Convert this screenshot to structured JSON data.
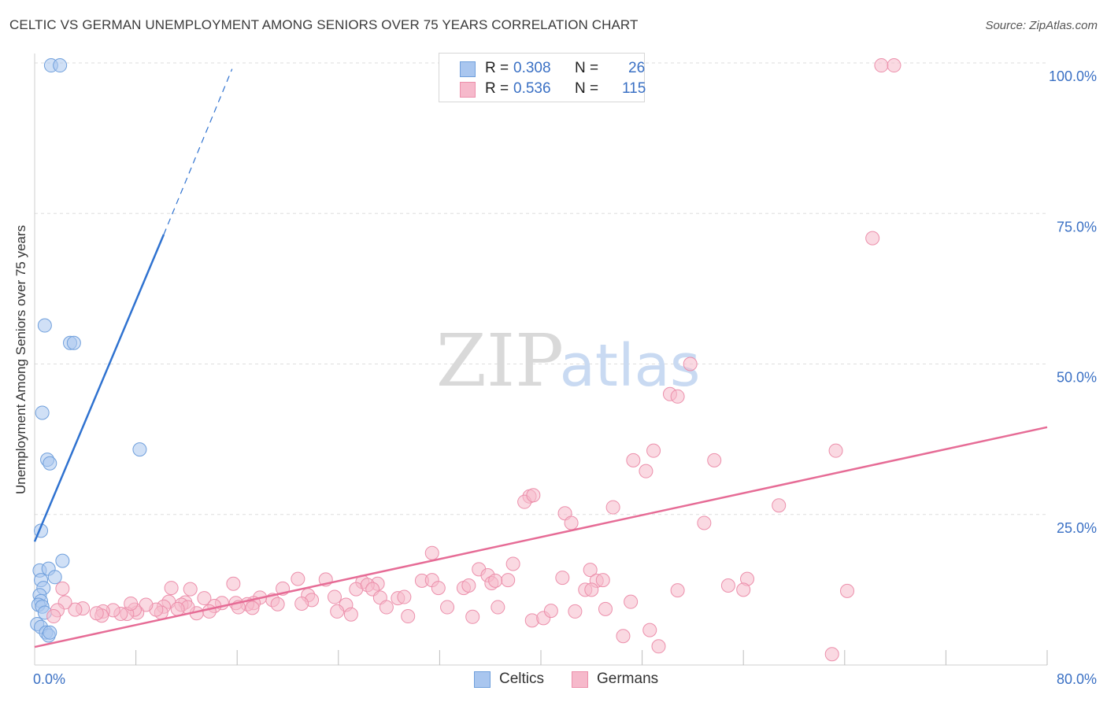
{
  "title": "CELTIC VS GERMAN UNEMPLOYMENT AMONG SENIORS OVER 75 YEARS CORRELATION CHART",
  "source": "Source: ZipAtlas.com",
  "watermark": {
    "zip": "ZIP",
    "atlas": "atlas"
  },
  "legend": {
    "rows": [
      {
        "r_label": "R =",
        "r_value": "0.308",
        "n_label": "N =",
        "n_value": "26",
        "color": "#a9c6ef"
      },
      {
        "r_label": "R =",
        "r_value": "0.536",
        "n_label": "N =",
        "n_value": "115",
        "color": "#f6b9cb"
      }
    ]
  },
  "bottom_legend": [
    {
      "label": "Celtics",
      "color": "#a9c6ef"
    },
    {
      "label": "Germans",
      "color": "#f6b9cb"
    }
  ],
  "chart_data": {
    "type": "scatter",
    "title": "CELTIC VS GERMAN UNEMPLOYMENT AMONG SENIORS OVER 75 YEARS CORRELATION CHART",
    "xlabel": "",
    "ylabel": "Unemployment Among Seniors over 75 years",
    "xlim": [
      0,
      80
    ],
    "ylim": [
      0,
      100
    ],
    "x_tick_labels": [
      "0.0%",
      "80.0%"
    ],
    "y_tick_labels": [
      {
        "value": 100,
        "label": "100.0%"
      },
      {
        "value": 75,
        "label": "75.0%"
      },
      {
        "value": 50,
        "label": "50.0%"
      },
      {
        "value": 25,
        "label": "25.0%"
      }
    ],
    "grid": true,
    "series": [
      {
        "name": "Celtics",
        "color": "#a9c6ef",
        "stroke": "#6f9fdc",
        "line_color": "#2f72d0",
        "trend": {
          "x0": 0.0,
          "y0": 20.5,
          "x1": 10.2,
          "y1": 71.5,
          "dash_to_x": 15.6,
          "dash_to_y": 99.0
        },
        "points": [
          [
            1.3,
            99.6
          ],
          [
            2.0,
            99.6
          ],
          [
            0.8,
            56.4
          ],
          [
            2.8,
            53.5
          ],
          [
            3.1,
            53.5
          ],
          [
            0.6,
            41.9
          ],
          [
            1.0,
            34.1
          ],
          [
            1.2,
            33.5
          ],
          [
            8.3,
            35.8
          ],
          [
            0.5,
            22.3
          ],
          [
            2.2,
            17.3
          ],
          [
            0.4,
            15.7
          ],
          [
            1.1,
            16.0
          ],
          [
            0.5,
            14.1
          ],
          [
            1.6,
            14.6
          ],
          [
            0.7,
            12.8
          ],
          [
            0.4,
            11.6
          ],
          [
            0.5,
            10.6
          ],
          [
            0.3,
            10.0
          ],
          [
            0.6,
            9.7
          ],
          [
            0.8,
            8.7
          ],
          [
            0.2,
            6.8
          ],
          [
            0.5,
            6.3
          ],
          [
            0.9,
            5.4
          ],
          [
            1.1,
            4.9
          ],
          [
            1.2,
            5.4
          ]
        ]
      },
      {
        "name": "Germans",
        "color": "#f6b9cb",
        "stroke": "#ec8fab",
        "line_color": "#e66c96",
        "trend": {
          "x0": 0.0,
          "y0": 3.0,
          "x1": 80.0,
          "y1": 39.5
        },
        "points": [
          [
            66.9,
            99.6
          ],
          [
            67.9,
            99.6
          ],
          [
            66.2,
            70.9
          ],
          [
            51.8,
            50.0
          ],
          [
            50.2,
            45.0
          ],
          [
            50.8,
            44.6
          ],
          [
            48.9,
            35.6
          ],
          [
            63.3,
            35.6
          ],
          [
            47.3,
            34.0
          ],
          [
            53.7,
            34.0
          ],
          [
            48.3,
            32.2
          ],
          [
            39.1,
            28.0
          ],
          [
            38.7,
            27.1
          ],
          [
            39.4,
            28.2
          ],
          [
            45.7,
            26.2
          ],
          [
            58.8,
            26.5
          ],
          [
            41.9,
            25.2
          ],
          [
            42.4,
            23.6
          ],
          [
            52.9,
            23.6
          ],
          [
            31.4,
            18.6
          ],
          [
            35.1,
            15.9
          ],
          [
            37.8,
            16.8
          ],
          [
            41.7,
            14.5
          ],
          [
            43.9,
            15.8
          ],
          [
            30.6,
            14.0
          ],
          [
            31.4,
            14.1
          ],
          [
            35.8,
            14.9
          ],
          [
            37.4,
            14.1
          ],
          [
            36.1,
            13.6
          ],
          [
            36.4,
            14.0
          ],
          [
            44.4,
            14.0
          ],
          [
            44.9,
            14.1
          ],
          [
            31.9,
            12.8
          ],
          [
            33.9,
            12.8
          ],
          [
            34.3,
            13.2
          ],
          [
            25.9,
            13.8
          ],
          [
            27.1,
            13.5
          ],
          [
            25.4,
            12.6
          ],
          [
            26.3,
            13.3
          ],
          [
            26.7,
            12.6
          ],
          [
            20.8,
            14.3
          ],
          [
            23.0,
            14.2
          ],
          [
            43.5,
            12.5
          ],
          [
            44.0,
            12.5
          ],
          [
            50.8,
            12.4
          ],
          [
            54.8,
            13.2
          ],
          [
            56.3,
            14.3
          ],
          [
            56.0,
            12.5
          ],
          [
            64.2,
            12.3
          ],
          [
            27.3,
            11.2
          ],
          [
            23.7,
            11.3
          ],
          [
            28.7,
            11.1
          ],
          [
            29.2,
            11.3
          ],
          [
            21.6,
            11.6
          ],
          [
            21.9,
            10.8
          ],
          [
            21.1,
            10.2
          ],
          [
            19.6,
            12.7
          ],
          [
            18.8,
            10.8
          ],
          [
            19.2,
            10.1
          ],
          [
            17.8,
            11.2
          ],
          [
            15.7,
            13.5
          ],
          [
            17.3,
            10.3
          ],
          [
            16.8,
            10.1
          ],
          [
            15.9,
            10.3
          ],
          [
            14.8,
            10.3
          ],
          [
            13.4,
            11.1
          ],
          [
            14.2,
            9.8
          ],
          [
            12.3,
            12.6
          ],
          [
            11.9,
            10.4
          ],
          [
            10.6,
            10.5
          ],
          [
            11.6,
            10.0
          ],
          [
            13.8,
            8.9
          ],
          [
            12.8,
            8.6
          ],
          [
            12.1,
            9.6
          ],
          [
            11.3,
            9.3
          ],
          [
            10.2,
            9.7
          ],
          [
            10.0,
            8.7
          ],
          [
            9.6,
            9.2
          ],
          [
            8.8,
            10.0
          ],
          [
            8.1,
            8.7
          ],
          [
            7.9,
            9.2
          ],
          [
            7.3,
            8.5
          ],
          [
            6.8,
            8.5
          ],
          [
            6.2,
            9.1
          ],
          [
            5.4,
            8.9
          ],
          [
            5.3,
            8.2
          ],
          [
            4.9,
            8.6
          ],
          [
            3.8,
            9.4
          ],
          [
            3.2,
            9.2
          ],
          [
            2.4,
            10.4
          ],
          [
            1.8,
            9.1
          ],
          [
            1.5,
            8.1
          ],
          [
            16.1,
            9.6
          ],
          [
            17.2,
            9.5
          ],
          [
            24.6,
            10.0
          ],
          [
            27.8,
            9.6
          ],
          [
            23.9,
            8.9
          ],
          [
            25.0,
            8.4
          ],
          [
            29.5,
            8.1
          ],
          [
            32.6,
            9.6
          ],
          [
            34.6,
            8.0
          ],
          [
            36.6,
            9.6
          ],
          [
            39.3,
            7.4
          ],
          [
            40.2,
            7.8
          ],
          [
            40.8,
            9.0
          ],
          [
            42.7,
            8.9
          ],
          [
            45.1,
            9.3
          ],
          [
            47.1,
            10.5
          ],
          [
            46.5,
            4.8
          ],
          [
            48.6,
            5.8
          ],
          [
            49.3,
            3.1
          ],
          [
            63.0,
            1.8
          ],
          [
            10.8,
            12.8
          ],
          [
            7.6,
            10.2
          ],
          [
            2.2,
            12.7
          ]
        ]
      }
    ]
  }
}
